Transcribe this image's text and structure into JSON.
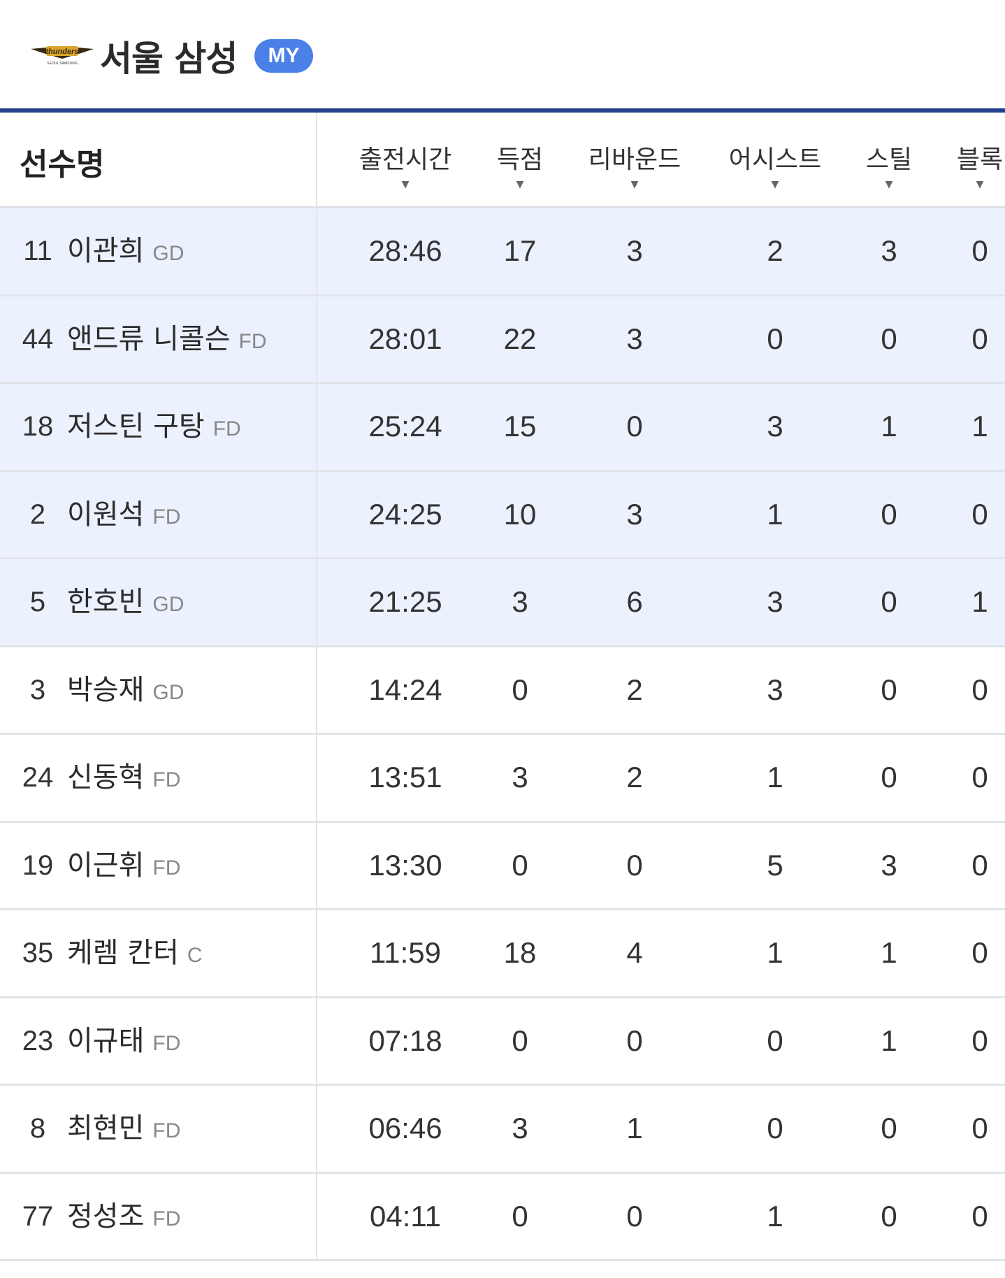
{
  "header": {
    "team": "서울 삼성",
    "badge": "MY",
    "logo_text": "thunders SEOUL SAMSUNG",
    "accent": "#233f8c",
    "badge_color": "#4a80e8"
  },
  "table": {
    "name_header": "선수명",
    "columns": [
      "출전시간",
      "득점",
      "리바운드",
      "어시스트",
      "스틸",
      "블록"
    ],
    "sort_icon": "triangle-down-icon",
    "rows": [
      {
        "num": "11",
        "name": "이관희",
        "pos": "GD",
        "starter": true,
        "stats": [
          "28:46",
          "17",
          "3",
          "2",
          "3",
          "0"
        ]
      },
      {
        "num": "44",
        "name": "앤드류 니콜슨",
        "pos": "FD",
        "starter": true,
        "stats": [
          "28:01",
          "22",
          "3",
          "0",
          "0",
          "0"
        ]
      },
      {
        "num": "18",
        "name": "저스틴 구탕",
        "pos": "FD",
        "starter": true,
        "stats": [
          "25:24",
          "15",
          "0",
          "3",
          "1",
          "1"
        ]
      },
      {
        "num": "2",
        "name": "이원석",
        "pos": "FD",
        "starter": true,
        "stats": [
          "24:25",
          "10",
          "3",
          "1",
          "0",
          "0"
        ]
      },
      {
        "num": "5",
        "name": "한호빈",
        "pos": "GD",
        "starter": true,
        "stats": [
          "21:25",
          "3",
          "6",
          "3",
          "0",
          "1"
        ]
      },
      {
        "num": "3",
        "name": "박승재",
        "pos": "GD",
        "starter": false,
        "stats": [
          "14:24",
          "0",
          "2",
          "3",
          "0",
          "0"
        ]
      },
      {
        "num": "24",
        "name": "신동혁",
        "pos": "FD",
        "starter": false,
        "stats": [
          "13:51",
          "3",
          "2",
          "1",
          "0",
          "0"
        ]
      },
      {
        "num": "19",
        "name": "이근휘",
        "pos": "FD",
        "starter": false,
        "stats": [
          "13:30",
          "0",
          "0",
          "5",
          "3",
          "0"
        ]
      },
      {
        "num": "35",
        "name": "케렘 칸터",
        "pos": "C",
        "starter": false,
        "stats": [
          "11:59",
          "18",
          "4",
          "1",
          "1",
          "0"
        ]
      },
      {
        "num": "23",
        "name": "이규태",
        "pos": "FD",
        "starter": false,
        "stats": [
          "07:18",
          "0",
          "0",
          "0",
          "1",
          "0"
        ]
      },
      {
        "num": "8",
        "name": "최현민",
        "pos": "FD",
        "starter": false,
        "stats": [
          "06:46",
          "3",
          "1",
          "0",
          "0",
          "0"
        ]
      },
      {
        "num": "77",
        "name": "정성조",
        "pos": "FD",
        "starter": false,
        "stats": [
          "04:11",
          "0",
          "0",
          "1",
          "0",
          "0"
        ]
      }
    ]
  }
}
